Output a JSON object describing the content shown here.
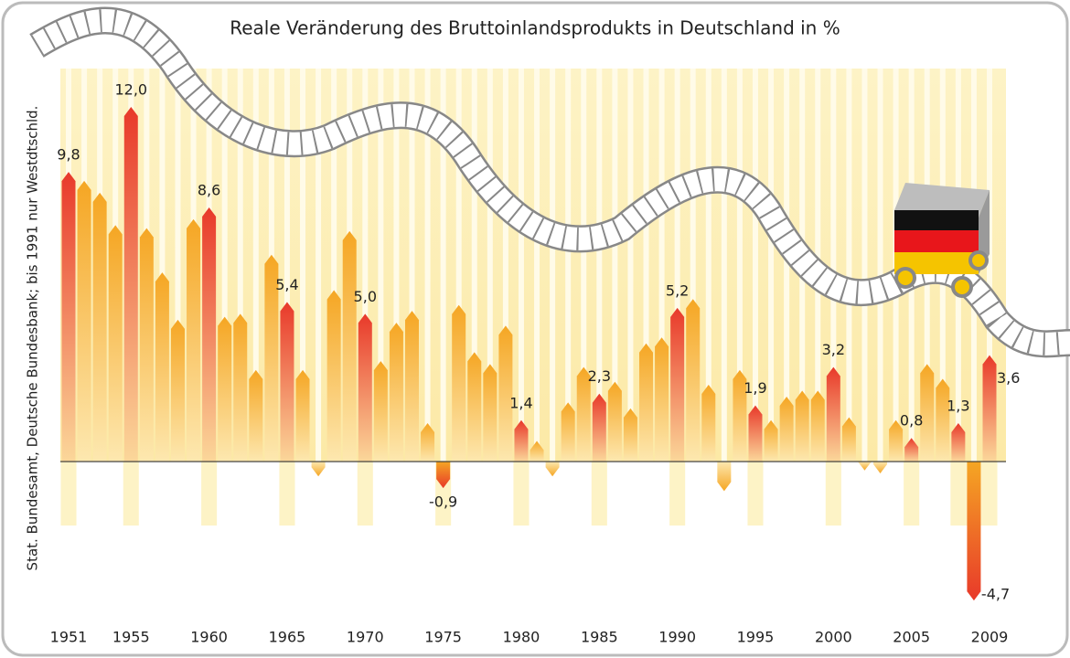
{
  "chart_data": {
    "type": "bar",
    "title": "Reale Veränderung des Bruttoinlandsprodukts in Deutschland in %",
    "y_label": "Stat. Bundesamt, Deutsche Bundesbank; bis 1991 nur Westdtschld.",
    "categories": [
      "1951",
      null,
      null,
      null,
      "1955",
      null,
      null,
      null,
      null,
      "1960",
      null,
      null,
      null,
      null,
      "1965",
      null,
      null,
      null,
      null,
      "1970",
      null,
      null,
      null,
      null,
      "1975",
      null,
      null,
      null,
      null,
      "1980",
      null,
      null,
      null,
      null,
      "1985",
      null,
      null,
      null,
      null,
      "1990",
      null,
      null,
      null,
      null,
      "1995",
      null,
      null,
      null,
      null,
      "2000",
      null,
      null,
      null,
      null,
      "2005",
      null,
      null,
      null,
      null,
      "2009"
    ],
    "values": [
      9.8,
      9.5,
      9.1,
      8.0,
      12.0,
      7.9,
      6.4,
      4.8,
      8.2,
      8.6,
      4.9,
      5.0,
      3.1,
      7.0,
      5.4,
      3.1,
      -0.5,
      5.8,
      7.8,
      5.0,
      3.4,
      4.7,
      5.1,
      1.3,
      -0.9,
      5.3,
      3.7,
      3.3,
      4.6,
      1.4,
      0.7,
      -0.5,
      2.0,
      3.2,
      2.3,
      2.7,
      1.8,
      4.0,
      4.2,
      5.2,
      5.5,
      2.6,
      -1.0,
      3.1,
      1.9,
      1.4,
      2.2,
      2.4,
      2.4,
      3.2,
      1.5,
      -0.3,
      -0.4,
      1.4,
      0.8,
      3.3,
      2.8,
      1.3,
      -4.7,
      3.6
    ],
    "value_labels": [
      "9,8",
      null,
      null,
      null,
      "12,0",
      null,
      null,
      null,
      null,
      "8,6",
      null,
      null,
      null,
      null,
      "5,4",
      null,
      null,
      null,
      null,
      "5,0",
      null,
      null,
      null,
      null,
      "-0,9",
      null,
      null,
      null,
      null,
      "1,4",
      null,
      null,
      null,
      null,
      "2,3",
      null,
      null,
      null,
      null,
      "5,2",
      null,
      null,
      null,
      null,
      "1,9",
      null,
      null,
      null,
      null,
      "3,2",
      null,
      null,
      null,
      null,
      "0,8",
      null,
      null,
      "1,3",
      "-4,7",
      "3,6"
    ],
    "color": "#f5a623",
    "highlight_color": "#e8392a",
    "ylim": [
      -5.1,
      13.3
    ]
  }
}
